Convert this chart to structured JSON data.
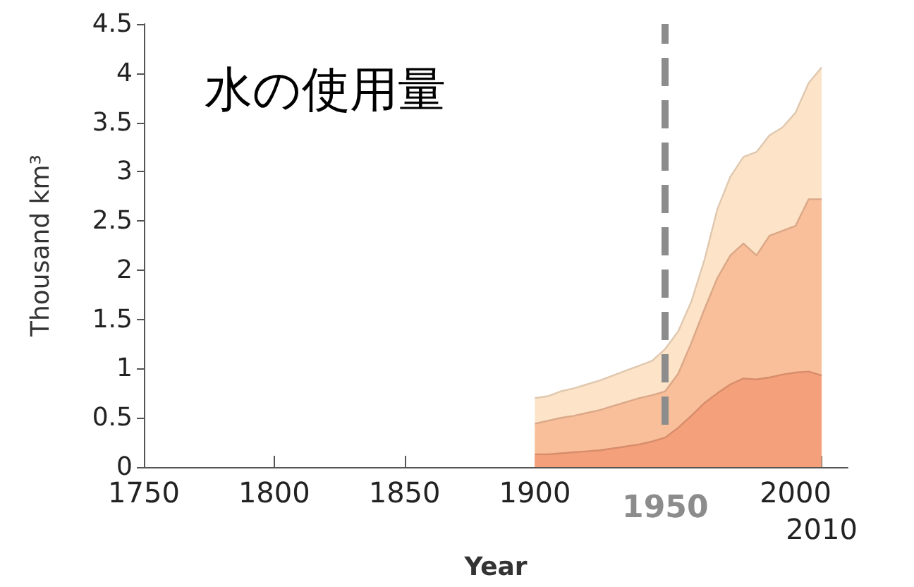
{
  "chart_data": {
    "type": "area",
    "stacked": true,
    "title": "水の使用量",
    "xlabel": "Year",
    "ylabel": "Thousand km³",
    "x": [
      1900,
      1905,
      1910,
      1915,
      1920,
      1925,
      1930,
      1935,
      1940,
      1945,
      1950,
      1955,
      1960,
      1965,
      1970,
      1975,
      1980,
      1985,
      1990,
      1995,
      2000,
      2005,
      2010
    ],
    "series": [
      {
        "color": "#f4a07a",
        "values": [
          0.13,
          0.13,
          0.14,
          0.15,
          0.16,
          0.17,
          0.19,
          0.21,
          0.23,
          0.26,
          0.3,
          0.4,
          0.52,
          0.65,
          0.75,
          0.84,
          0.9,
          0.89,
          0.91,
          0.94,
          0.96,
          0.97,
          0.93
        ]
      },
      {
        "color": "#f8bf9a",
        "values": [
          0.31,
          0.34,
          0.36,
          0.37,
          0.39,
          0.41,
          0.43,
          0.45,
          0.47,
          0.47,
          0.47,
          0.55,
          0.74,
          0.95,
          1.17,
          1.31,
          1.37,
          1.26,
          1.44,
          1.46,
          1.49,
          1.75,
          1.79
        ]
      },
      {
        "color": "#fde3c8",
        "values": [
          0.26,
          0.25,
          0.27,
          0.28,
          0.29,
          0.3,
          0.31,
          0.32,
          0.33,
          0.35,
          0.43,
          0.43,
          0.42,
          0.5,
          0.7,
          0.8,
          0.88,
          1.05,
          1.02,
          1.05,
          1.15,
          1.18,
          1.34
        ]
      }
    ],
    "xlim": [
      1750,
      2020
    ],
    "xticks": [
      1750,
      1800,
      1850,
      1900,
      2000,
      {
        "value": 2010,
        "label": null
      }
    ],
    "annotations": [
      {
        "text": "2010",
        "x": 2010,
        "y": 0
      }
    ],
    "ylim": [
      0,
      4.5
    ],
    "yticks": [
      0,
      0.5,
      1,
      1.5,
      2,
      2.5,
      3,
      3.5,
      4,
      4.5
    ],
    "ref_lines": [
      {
        "axis": "x",
        "value": 1950,
        "label": "1950",
        "color": "#8c8c8c",
        "line_style": "dashed"
      }
    ],
    "grid": false
  }
}
